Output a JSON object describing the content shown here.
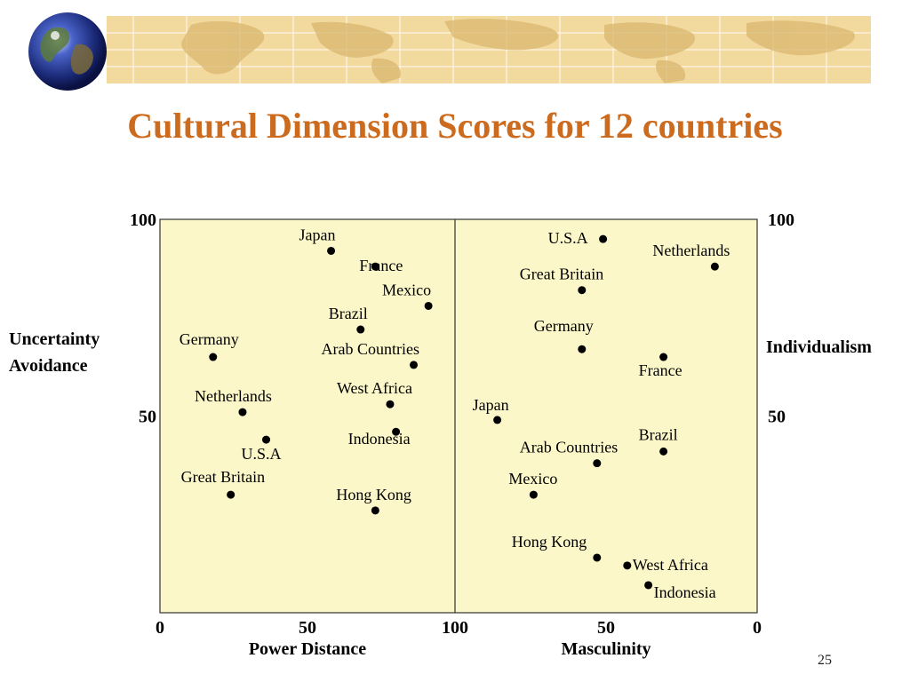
{
  "slide": {
    "title": "Cultural Dimension Scores for 12 countries",
    "page_number": "25"
  },
  "colors": {
    "title": "#cc6a1e",
    "banner": "#f2d99e",
    "plot_background": "#fbf7c9",
    "point": "#000000"
  },
  "icons": [
    "globe-icon",
    "world-map-banner"
  ],
  "chart_data": [
    {
      "type": "scatter",
      "xlabel": "Power Distance",
      "ylabel": "Uncertainty Avoidance",
      "xlim": [
        0,
        100
      ],
      "ylim": [
        0,
        100
      ],
      "x_ticks": [
        "0",
        "50",
        "100"
      ],
      "y_ticks": [
        "0",
        "50",
        "100"
      ],
      "points": [
        {
          "label": "Japan",
          "x": 58,
          "y": 92
        },
        {
          "label": "France",
          "x": 73,
          "y": 88
        },
        {
          "label": "Mexico",
          "x": 91,
          "y": 78
        },
        {
          "label": "Brazil",
          "x": 68,
          "y": 72
        },
        {
          "label": "Germany",
          "x": 18,
          "y": 65
        },
        {
          "label": "Arab Countries",
          "x": 86,
          "y": 63
        },
        {
          "label": "West Africa",
          "x": 78,
          "y": 53
        },
        {
          "label": "Netherlands",
          "x": 28,
          "y": 51
        },
        {
          "label": "Indonesia",
          "x": 80,
          "y": 46
        },
        {
          "label": "U.S.A",
          "x": 36,
          "y": 44
        },
        {
          "label": "Great Britain",
          "x": 24,
          "y": 30
        },
        {
          "label": "Hong Kong",
          "x": 73,
          "y": 26
        }
      ]
    },
    {
      "type": "scatter",
      "xlabel": "Masculinity",
      "ylabel": "Individualism",
      "xlim": [
        100,
        0
      ],
      "ylim": [
        0,
        100
      ],
      "x_ticks": [
        "100",
        "50",
        "0"
      ],
      "y_ticks": [
        "0",
        "50",
        "100"
      ],
      "points": [
        {
          "label": "U.S.A",
          "x": 51,
          "y": 95
        },
        {
          "label": "Netherlands",
          "x": 14,
          "y": 88
        },
        {
          "label": "Great Britain",
          "x": 58,
          "y": 82
        },
        {
          "label": "Germany",
          "x": 58,
          "y": 67
        },
        {
          "label": "France",
          "x": 31,
          "y": 65
        },
        {
          "label": "Japan",
          "x": 86,
          "y": 49
        },
        {
          "label": "Brazil",
          "x": 31,
          "y": 41
        },
        {
          "label": "Arab Countries",
          "x": 53,
          "y": 38
        },
        {
          "label": "Mexico",
          "x": 74,
          "y": 30
        },
        {
          "label": "Hong Kong",
          "x": 53,
          "y": 14
        },
        {
          "label": "West Africa",
          "x": 43,
          "y": 12
        },
        {
          "label": "Indonesia",
          "x": 36,
          "y": 7
        }
      ]
    }
  ]
}
